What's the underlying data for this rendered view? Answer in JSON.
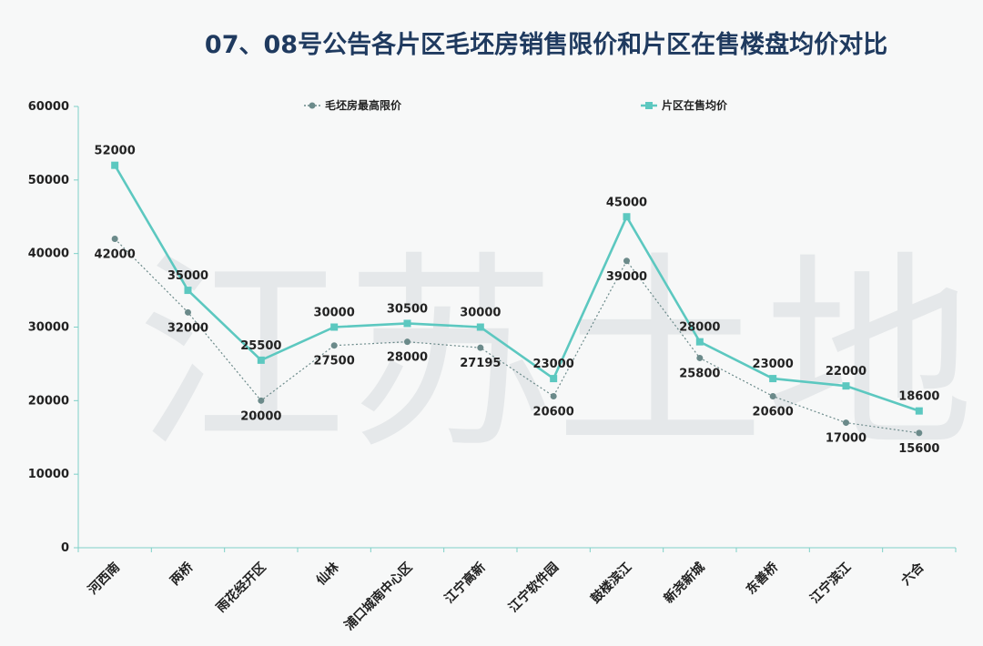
{
  "watermark": "江苏土地",
  "chart_data": {
    "type": "line",
    "title": "07、08号公告各片区毛坯房销售限价和片区在售楼盘均价对比",
    "xlabel": "",
    "ylabel": "",
    "ylim": [
      0,
      60000
    ],
    "yticks": [
      0,
      10000,
      20000,
      30000,
      40000,
      50000,
      60000
    ],
    "legend_position": "top",
    "categories": [
      "河西南",
      "两桥",
      "雨花经开区",
      "仙林",
      "浦口城南中心区",
      "江宁高新",
      "江宁软件园",
      "鼓楼滨江",
      "新尧新城",
      "东善桥",
      "江宁滨江",
      "六合"
    ],
    "series": [
      {
        "name": "毛坯房最高限价",
        "color": "#6b8a8a",
        "values": [
          42000,
          32000,
          20000,
          27500,
          28000,
          27195,
          20600,
          39000,
          25800,
          20600,
          17000,
          15600
        ]
      },
      {
        "name": "片区在售均价",
        "color": "#5cc8c0",
        "values": [
          52000,
          35000,
          25500,
          30000,
          30500,
          30000,
          23000,
          45000,
          28000,
          23000,
          22000,
          18600
        ]
      }
    ]
  }
}
